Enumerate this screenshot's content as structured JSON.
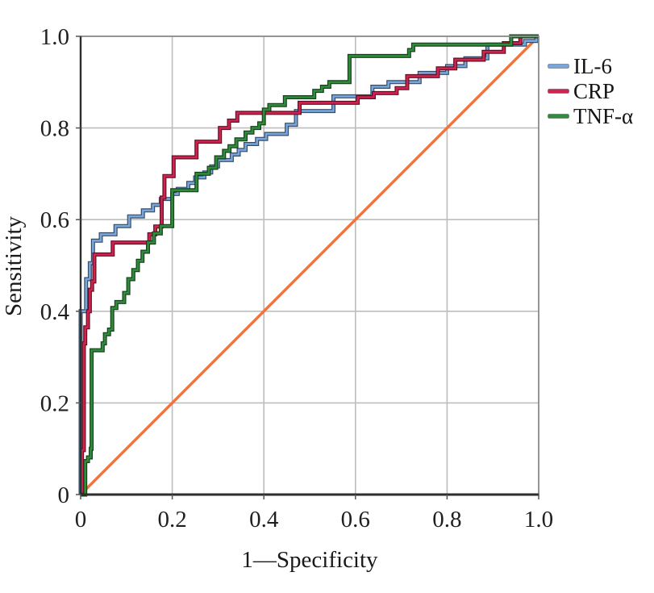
{
  "chart_data": {
    "type": "line",
    "subtype": "roc_step_curves",
    "title": "",
    "xlabel": "1—Specificity",
    "ylabel": "Sensitivity",
    "xlim": [
      0,
      1
    ],
    "ylim": [
      0,
      1
    ],
    "grid": true,
    "legend_position": "right",
    "x_ticks": [
      0,
      0.2,
      0.4,
      0.6,
      0.8,
      1.0
    ],
    "x_tick_labels": [
      "0",
      "0.2",
      "0.4",
      "0.6",
      "0.8",
      "1.0"
    ],
    "y_ticks": [
      0,
      0.2,
      0.4,
      0.6,
      0.8,
      1.0
    ],
    "y_tick_labels": [
      "0",
      "0.2",
      "0.4",
      "0.6",
      "0.8",
      "1.0"
    ],
    "reference_line": {
      "name": "chance-diagonal",
      "from": [
        0,
        0
      ],
      "to": [
        1,
        1
      ],
      "color": "#ED7440"
    },
    "series": [
      {
        "name": "IL-6",
        "color": "#79A7DD",
        "points": [
          [
            0,
            0
          ],
          [
            0,
            0.4
          ],
          [
            0.012,
            0.4
          ],
          [
            0.012,
            0.47
          ],
          [
            0.02,
            0.47
          ],
          [
            0.02,
            0.505
          ],
          [
            0.027,
            0.505
          ],
          [
            0.027,
            0.554
          ],
          [
            0.044,
            0.554
          ],
          [
            0.044,
            0.568
          ],
          [
            0.076,
            0.568
          ],
          [
            0.076,
            0.586
          ],
          [
            0.106,
            0.586
          ],
          [
            0.106,
            0.607
          ],
          [
            0.136,
            0.607
          ],
          [
            0.136,
            0.62
          ],
          [
            0.158,
            0.62
          ],
          [
            0.158,
            0.632
          ],
          [
            0.175,
            0.632
          ],
          [
            0.175,
            0.645
          ],
          [
            0.2,
            0.645
          ],
          [
            0.2,
            0.656
          ],
          [
            0.212,
            0.656
          ],
          [
            0.212,
            0.667
          ],
          [
            0.235,
            0.667
          ],
          [
            0.235,
            0.68
          ],
          [
            0.25,
            0.68
          ],
          [
            0.25,
            0.692
          ],
          [
            0.27,
            0.692
          ],
          [
            0.27,
            0.703
          ],
          [
            0.285,
            0.703
          ],
          [
            0.285,
            0.716
          ],
          [
            0.3,
            0.716
          ],
          [
            0.3,
            0.73
          ],
          [
            0.33,
            0.73
          ],
          [
            0.33,
            0.742
          ],
          [
            0.345,
            0.742
          ],
          [
            0.345,
            0.752
          ],
          [
            0.36,
            0.752
          ],
          [
            0.36,
            0.765
          ],
          [
            0.385,
            0.765
          ],
          [
            0.385,
            0.776
          ],
          [
            0.405,
            0.776
          ],
          [
            0.405,
            0.787
          ],
          [
            0.45,
            0.787
          ],
          [
            0.45,
            0.807
          ],
          [
            0.47,
            0.807
          ],
          [
            0.47,
            0.837
          ],
          [
            0.552,
            0.837
          ],
          [
            0.552,
            0.869
          ],
          [
            0.637,
            0.869
          ],
          [
            0.637,
            0.89
          ],
          [
            0.672,
            0.89
          ],
          [
            0.672,
            0.9
          ],
          [
            0.74,
            0.9
          ],
          [
            0.74,
            0.92
          ],
          [
            0.8,
            0.92
          ],
          [
            0.8,
            0.935
          ],
          [
            0.84,
            0.935
          ],
          [
            0.84,
            0.952
          ],
          [
            0.888,
            0.952
          ],
          [
            0.888,
            0.982
          ],
          [
            0.97,
            0.982
          ],
          [
            0.97,
            0.99
          ],
          [
            0.995,
            0.99
          ],
          [
            0.995,
            1.0
          ],
          [
            1,
            1
          ]
        ]
      },
      {
        "name": "CRP",
        "color": "#D1234F",
        "points": [
          [
            0,
            0
          ],
          [
            0.003,
            0
          ],
          [
            0.003,
            0.097
          ],
          [
            0.007,
            0.097
          ],
          [
            0.007,
            0.33
          ],
          [
            0.01,
            0.33
          ],
          [
            0.01,
            0.365
          ],
          [
            0.016,
            0.365
          ],
          [
            0.016,
            0.4
          ],
          [
            0.02,
            0.4
          ],
          [
            0.02,
            0.447
          ],
          [
            0.025,
            0.447
          ],
          [
            0.025,
            0.465
          ],
          [
            0.03,
            0.465
          ],
          [
            0.03,
            0.524
          ],
          [
            0.07,
            0.524
          ],
          [
            0.07,
            0.55
          ],
          [
            0.15,
            0.55
          ],
          [
            0.15,
            0.568
          ],
          [
            0.163,
            0.568
          ],
          [
            0.163,
            0.585
          ],
          [
            0.177,
            0.585
          ],
          [
            0.177,
            0.648
          ],
          [
            0.183,
            0.648
          ],
          [
            0.183,
            0.695
          ],
          [
            0.203,
            0.695
          ],
          [
            0.203,
            0.736
          ],
          [
            0.253,
            0.736
          ],
          [
            0.253,
            0.77
          ],
          [
            0.304,
            0.77
          ],
          [
            0.304,
            0.8
          ],
          [
            0.324,
            0.8
          ],
          [
            0.324,
            0.816
          ],
          [
            0.342,
            0.816
          ],
          [
            0.342,
            0.833
          ],
          [
            0.478,
            0.833
          ],
          [
            0.478,
            0.855
          ],
          [
            0.605,
            0.855
          ],
          [
            0.605,
            0.867
          ],
          [
            0.64,
            0.867
          ],
          [
            0.64,
            0.876
          ],
          [
            0.69,
            0.876
          ],
          [
            0.69,
            0.887
          ],
          [
            0.713,
            0.887
          ],
          [
            0.713,
            0.913
          ],
          [
            0.78,
            0.913
          ],
          [
            0.78,
            0.93
          ],
          [
            0.818,
            0.93
          ],
          [
            0.818,
            0.949
          ],
          [
            0.88,
            0.949
          ],
          [
            0.88,
            0.966
          ],
          [
            0.924,
            0.966
          ],
          [
            0.924,
            0.985
          ],
          [
            0.96,
            0.985
          ],
          [
            0.96,
            1.0
          ],
          [
            1,
            1
          ]
        ]
      },
      {
        "name": "TNF-α",
        "color": "#318B3C",
        "points": [
          [
            0,
            0
          ],
          [
            0.01,
            0
          ],
          [
            0.01,
            0.073
          ],
          [
            0.016,
            0.073
          ],
          [
            0.016,
            0.081
          ],
          [
            0.022,
            0.081
          ],
          [
            0.022,
            0.1
          ],
          [
            0.024,
            0.1
          ],
          [
            0.024,
            0.315
          ],
          [
            0.048,
            0.315
          ],
          [
            0.048,
            0.33
          ],
          [
            0.053,
            0.33
          ],
          [
            0.053,
            0.35
          ],
          [
            0.062,
            0.35
          ],
          [
            0.062,
            0.36
          ],
          [
            0.069,
            0.36
          ],
          [
            0.069,
            0.407
          ],
          [
            0.078,
            0.407
          ],
          [
            0.078,
            0.42
          ],
          [
            0.095,
            0.42
          ],
          [
            0.095,
            0.44
          ],
          [
            0.104,
            0.44
          ],
          [
            0.104,
            0.47
          ],
          [
            0.115,
            0.47
          ],
          [
            0.115,
            0.49
          ],
          [
            0.125,
            0.49
          ],
          [
            0.125,
            0.51
          ],
          [
            0.135,
            0.51
          ],
          [
            0.135,
            0.53
          ],
          [
            0.147,
            0.53
          ],
          [
            0.147,
            0.55
          ],
          [
            0.16,
            0.55
          ],
          [
            0.16,
            0.57
          ],
          [
            0.175,
            0.57
          ],
          [
            0.175,
            0.586
          ],
          [
            0.2,
            0.586
          ],
          [
            0.2,
            0.664
          ],
          [
            0.253,
            0.664
          ],
          [
            0.253,
            0.7
          ],
          [
            0.28,
            0.7
          ],
          [
            0.28,
            0.713
          ],
          [
            0.296,
            0.713
          ],
          [
            0.296,
            0.736
          ],
          [
            0.313,
            0.736
          ],
          [
            0.313,
            0.75
          ],
          [
            0.325,
            0.75
          ],
          [
            0.325,
            0.76
          ],
          [
            0.34,
            0.76
          ],
          [
            0.34,
            0.775
          ],
          [
            0.36,
            0.775
          ],
          [
            0.36,
            0.79
          ],
          [
            0.375,
            0.79
          ],
          [
            0.375,
            0.8
          ],
          [
            0.39,
            0.8
          ],
          [
            0.39,
            0.81
          ],
          [
            0.4,
            0.81
          ],
          [
            0.4,
            0.84
          ],
          [
            0.412,
            0.84
          ],
          [
            0.412,
            0.85
          ],
          [
            0.446,
            0.85
          ],
          [
            0.446,
            0.867
          ],
          [
            0.51,
            0.867
          ],
          [
            0.51,
            0.881
          ],
          [
            0.527,
            0.881
          ],
          [
            0.527,
            0.89
          ],
          [
            0.543,
            0.89
          ],
          [
            0.543,
            0.9
          ],
          [
            0.587,
            0.9
          ],
          [
            0.587,
            0.957
          ],
          [
            0.717,
            0.957
          ],
          [
            0.717,
            0.97
          ],
          [
            0.726,
            0.97
          ],
          [
            0.726,
            0.982
          ],
          [
            0.94,
            0.982
          ],
          [
            0.94,
            1.0
          ],
          [
            1,
            1
          ]
        ]
      }
    ],
    "style_colors": {
      "gridline": "#bdbdbd",
      "outer_border": "#8c8c8c",
      "axis_line": "#2e2e2e",
      "text": "#1a1a1a"
    }
  }
}
